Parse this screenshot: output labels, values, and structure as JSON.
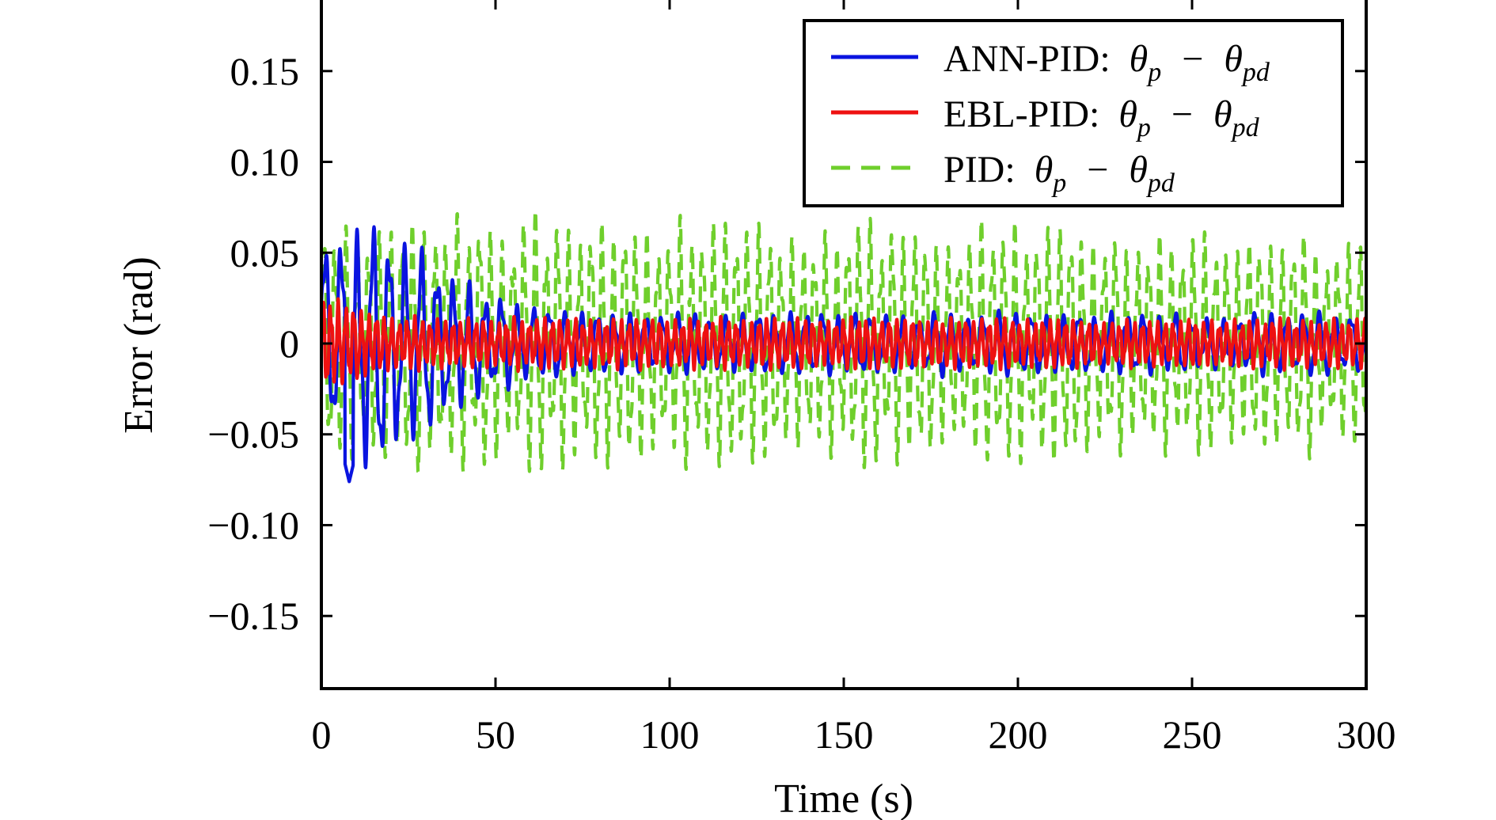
{
  "chart_data": {
    "type": "line",
    "title": "",
    "xlabel": "Time (s)",
    "ylabel": "Error (rad)",
    "xlim": [
      0,
      300
    ],
    "ylim": [
      -0.19,
      0.19
    ],
    "xticks": [
      0,
      50,
      100,
      150,
      200,
      250,
      300
    ],
    "xtick_labels": [
      "0",
      "50",
      "100",
      "150",
      "200",
      "250",
      "300"
    ],
    "yticks": [
      0.15,
      0.1,
      0.05,
      0,
      -0.05,
      -0.1,
      -0.15
    ],
    "ytick_labels": [
      "0.15",
      "0.10",
      "0.05",
      "0",
      "−0.05",
      "−0.10",
      "−0.15"
    ],
    "grid": false,
    "legend_position": "top-right",
    "series": [
      {
        "name": "ANN-PID",
        "legend_prefix": "ANN-PID:",
        "color": "#0a14e0",
        "style": "solid",
        "dominant_period_s": 4.6,
        "envelope": [
          {
            "t": 0,
            "amp": 0.04,
            "offset": 0.01
          },
          {
            "t": 10,
            "amp": 0.065,
            "offset": -0.005
          },
          {
            "t": 20,
            "amp": 0.058,
            "offset": 0.0
          },
          {
            "t": 30,
            "amp": 0.045,
            "offset": 0.0
          },
          {
            "t": 45,
            "amp": 0.03,
            "offset": 0.0
          },
          {
            "t": 60,
            "amp": 0.02,
            "offset": 0.0
          },
          {
            "t": 80,
            "amp": 0.016,
            "offset": 0.0
          },
          {
            "t": 300,
            "amp": 0.015,
            "offset": 0.0
          }
        ],
        "min_value": -0.076,
        "min_time": 8
      },
      {
        "name": "EBL-PID",
        "legend_prefix": "EBL-PID:",
        "color": "#ee1111",
        "style": "solid",
        "dominant_period_s": 2.2,
        "envelope": [
          {
            "t": 0,
            "amp": 0.03,
            "offset": 0.0
          },
          {
            "t": 6,
            "amp": 0.02,
            "offset": 0.0
          },
          {
            "t": 20,
            "amp": 0.013,
            "offset": 0.0
          },
          {
            "t": 300,
            "amp": 0.012,
            "offset": 0.0
          }
        ]
      },
      {
        "name": "PID",
        "legend_prefix": "PID:",
        "color": "#6fcf2c",
        "style": "dashed",
        "dominant_period_s": 3.2,
        "envelope": [
          {
            "t": 0,
            "amp": 0.06,
            "offset": 0.0
          },
          {
            "t": 30,
            "amp": 0.062,
            "offset": 0.0
          },
          {
            "t": 150,
            "amp": 0.058,
            "offset": 0.0
          },
          {
            "t": 300,
            "amp": 0.052,
            "offset": 0.0
          }
        ],
        "max_value": 0.069,
        "min_value": -0.068
      }
    ],
    "legend_math": {
      "theta": "θ",
      "sub_p": "p",
      "minus": "−",
      "sub_pd": "pd"
    }
  }
}
